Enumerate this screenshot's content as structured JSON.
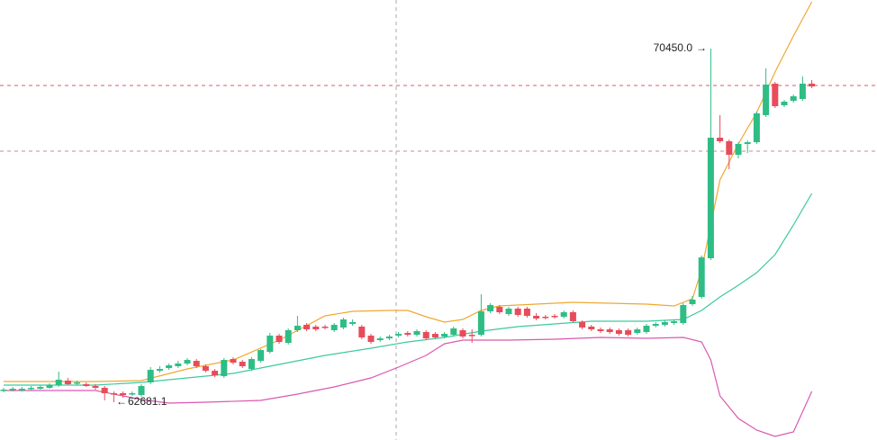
{
  "chart_data": {
    "type": "candlestick",
    "ylim": [
      61851,
      71518
    ],
    "up_color": "#2ebd85",
    "down_color": "#e84b5a",
    "open": [
      62938,
      62958,
      62938,
      62977,
      62977,
      62997,
      63057,
      63156,
      63096,
      63077,
      63037,
      62997,
      62879,
      62879,
      62859,
      62839,
      63116,
      63372,
      63432,
      63472,
      63531,
      63590,
      63472,
      63372,
      63254,
      63630,
      63570,
      63412,
      63590,
      63788,
      64144,
      63985,
      64263,
      64381,
      64342,
      64342,
      64263,
      64322,
      64401,
      64342,
      64144,
      64045,
      64084,
      64144,
      64203,
      64163,
      64223,
      64183,
      64124,
      64163,
      64263,
      64163,
      64163,
      64677,
      64776,
      64618,
      64737,
      64737,
      64579,
      64559,
      64579,
      64559,
      64658,
      64441,
      64342,
      64282,
      64282,
      64263,
      64263,
      64203,
      64223,
      64361,
      64381,
      64421,
      64421,
      64836,
      64994,
      65844,
      68493,
      68414,
      68117,
      68355,
      68394,
      68988,
      69680,
      69205,
      69303,
      69343,
      69680
    ],
    "high": [
      62997,
      63017,
      63017,
      63037,
      63057,
      63096,
      63353,
      63215,
      63156,
      63116,
      63077,
      63037,
      62918,
      62918,
      62918,
      63077,
      63452,
      63472,
      63531,
      63590,
      63650,
      63630,
      63511,
      63412,
      63650,
      63670,
      63610,
      63670,
      63847,
      64203,
      64183,
      64302,
      64579,
      64421,
      64381,
      64381,
      64421,
      64540,
      64500,
      64381,
      64183,
      64124,
      64163,
      64223,
      64243,
      64282,
      64263,
      64223,
      64223,
      64342,
      64302,
      64282,
      65054,
      64856,
      64816,
      64776,
      64776,
      64776,
      64638,
      64599,
      64618,
      64697,
      64697,
      64480,
      64381,
      64322,
      64322,
      64302,
      64302,
      64322,
      64401,
      64441,
      64480,
      64500,
      64856,
      65014,
      65903,
      70450,
      68988,
      68453,
      68394,
      68433,
      69067,
      70015,
      69719,
      69323,
      69442,
      69837,
      69758
    ],
    "low": [
      62898,
      62918,
      62918,
      62938,
      62958,
      62977,
      63017,
      63057,
      63057,
      63017,
      62958,
      62721,
      62681.1,
      62780,
      62819,
      62800,
      63077,
      63333,
      63392,
      63432,
      63491,
      63432,
      63333,
      63234,
      63215,
      63511,
      63432,
      63372,
      63551,
      63749,
      63965,
      63946,
      64223,
      64243,
      64243,
      64282,
      64223,
      64282,
      64361,
      64065,
      63965,
      64005,
      64045,
      64104,
      64124,
      64124,
      64045,
      64065,
      64084,
      64124,
      64084,
      63985,
      64124,
      64638,
      64618,
      64579,
      64559,
      64540,
      64480,
      64500,
      64520,
      64520,
      64421,
      64282,
      64243,
      64203,
      64183,
      64144,
      64124,
      64163,
      64183,
      64322,
      64342,
      64381,
      64381,
      64796,
      64954,
      65804,
      68374,
      67802,
      68038,
      68157,
      68355,
      68948,
      69146,
      69165,
      69264,
      69303,
      69581
    ],
    "close": [
      62958,
      62977,
      62977,
      62997,
      63017,
      63057,
      63175,
      63077,
      63116,
      63037,
      62997,
      62879,
      62859,
      62839,
      62879,
      63037,
      63392,
      63412,
      63491,
      63531,
      63610,
      63472,
      63372,
      63274,
      63610,
      63551,
      63472,
      63630,
      63827,
      64144,
      64005,
      64263,
      64361,
      64282,
      64282,
      64322,
      64381,
      64500,
      64441,
      64104,
      64005,
      64084,
      64124,
      64183,
      64163,
      64243,
      64084,
      64104,
      64183,
      64302,
      64124,
      64144,
      64677,
      64816,
      64658,
      64737,
      64599,
      64579,
      64520,
      64540,
      64559,
      64658,
      64461,
      64322,
      64282,
      64243,
      64223,
      64183,
      64163,
      64282,
      64361,
      64401,
      64441,
      64461,
      64816,
      64935,
      65863,
      68493,
      68414,
      68117,
      68355,
      68394,
      69027,
      69660,
      69185,
      69284,
      69403,
      69680,
      69620
    ],
    "bands": [
      {
        "color": "#f0a830",
        "x": [
          0,
          10,
          15,
          20,
          25,
          30,
          35,
          38,
          42,
          44,
          46,
          48,
          50,
          52,
          54,
          58,
          62,
          66,
          70,
          73,
          75,
          76,
          77,
          78,
          80,
          82,
          84,
          86,
          88
        ],
        "values": [
          63136,
          63136,
          63156,
          63412,
          63610,
          64045,
          64579,
          64677,
          64697,
          64697,
          64559,
          64441,
          64500,
          64697,
          64796,
          64836,
          64875,
          64856,
          64836,
          64796,
          64954,
          65587,
          66576,
          67564,
          68355,
          69047,
          69936,
          70727,
          71478
        ]
      },
      {
        "color": "#3cc9a0",
        "x": [
          0,
          10,
          15,
          20,
          25,
          30,
          35,
          40,
          44,
          48,
          52,
          56,
          60,
          64,
          70,
          74,
          76,
          78,
          80,
          82,
          84,
          86,
          88
        ],
        "values": [
          63057,
          63057,
          63116,
          63215,
          63313,
          63511,
          63709,
          63867,
          64005,
          64104,
          64243,
          64342,
          64401,
          64461,
          64461,
          64500,
          64697,
          64994,
          65251,
          65528,
          65923,
          66576,
          67267
        ]
      },
      {
        "color": "#d959b0",
        "x": [
          0,
          10,
          15,
          18,
          22,
          28,
          32,
          36,
          40,
          43,
          46,
          48,
          50,
          55,
          60,
          65,
          70,
          74,
          76,
          77,
          78,
          80,
          82,
          84,
          86,
          88
        ],
        "values": [
          62938,
          62938,
          62740,
          62661,
          62681,
          62721,
          62859,
          63017,
          63215,
          63452,
          63709,
          63965,
          64045,
          64045,
          64065,
          64104,
          64084,
          64104,
          64005,
          63610,
          62819,
          62325,
          62068,
          61930,
          62029,
          62918
        ]
      }
    ],
    "high_label": "70450.0",
    "low_label": "62681.1"
  }
}
